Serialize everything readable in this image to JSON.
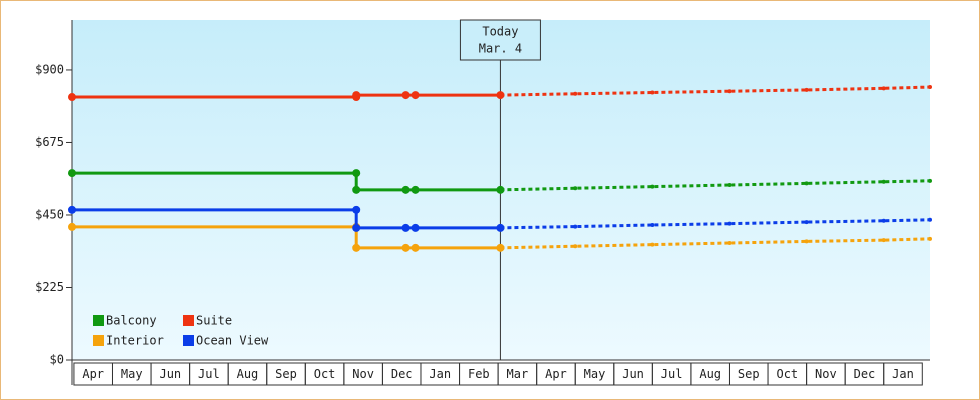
{
  "chart_data": {
    "type": "line",
    "categories": [
      "Apr",
      "May",
      "Jun",
      "Jul",
      "Aug",
      "Sep",
      "Oct",
      "Nov",
      "Dec",
      "Jan",
      "Feb",
      "Mar",
      "Apr",
      "May",
      "Jun",
      "Jul",
      "Aug",
      "Sep",
      "Oct",
      "Nov",
      "Dec",
      "Jan"
    ],
    "xlim": [
      -0.05,
      22.2
    ],
    "ylim": [
      0,
      1055
    ],
    "yticks": [
      {
        "value": 0,
        "label": "$0"
      },
      {
        "value": 225,
        "label": "$225"
      },
      {
        "value": 450,
        "label": "$450"
      },
      {
        "value": 675,
        "label": "$675"
      },
      {
        "value": 900,
        "label": "$900"
      }
    ],
    "today": {
      "x": 11.06,
      "label": [
        "Today",
        "Mar. 4"
      ]
    },
    "legend": "lower left",
    "series": [
      {
        "name": "Balcony",
        "color": "#119911",
        "x": [
          -0.05,
          7.32,
          7.32,
          8.6,
          8.86,
          11.06
        ],
        "values": [
          580,
          580,
          528,
          528,
          528,
          528
        ],
        "forecast_x": [
          11.06,
          13,
          15,
          17,
          19,
          21,
          22.2
        ],
        "forecast_values": [
          528,
          533,
          538,
          543,
          548,
          553,
          556
        ]
      },
      {
        "name": "Suite",
        "color": "#ee3311",
        "x": [
          -0.05,
          7.32,
          7.32,
          8.6,
          8.86,
          11.06
        ],
        "values": [
          816,
          816,
          822,
          822,
          822,
          822
        ],
        "forecast_x": [
          11.06,
          13,
          15,
          17,
          19,
          21,
          22.2
        ],
        "forecast_values": [
          822,
          826,
          830,
          834,
          838,
          843,
          847
        ]
      },
      {
        "name": "Interior",
        "color": "#f5a30c",
        "x": [
          -0.05,
          7.32,
          7.32,
          8.6,
          8.86,
          11.06
        ],
        "values": [
          413,
          413,
          348,
          348,
          348,
          348
        ],
        "forecast_x": [
          11.06,
          13,
          15,
          17,
          19,
          21,
          22.2
        ],
        "forecast_values": [
          348,
          353,
          358,
          363,
          368,
          372,
          376
        ]
      },
      {
        "name": "Ocean View",
        "color": "#0b3de8",
        "x": [
          -0.05,
          7.32,
          7.32,
          8.6,
          8.86,
          11.06
        ],
        "values": [
          466,
          466,
          410,
          410,
          410,
          410
        ],
        "forecast_x": [
          11.06,
          13,
          15,
          17,
          19,
          21,
          22.2
        ],
        "forecast_values": [
          410,
          414,
          419,
          423,
          428,
          432,
          435
        ]
      }
    ]
  }
}
